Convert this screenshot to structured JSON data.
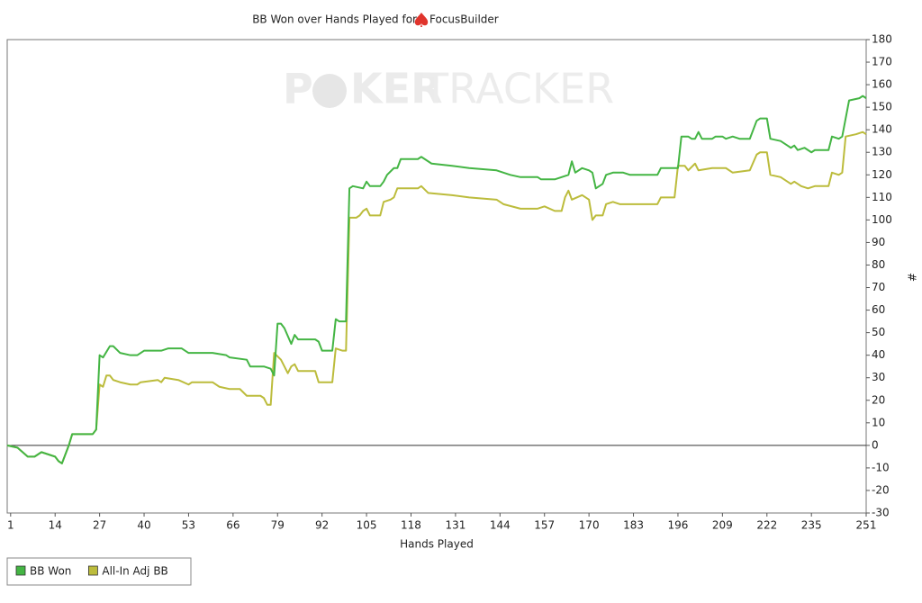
{
  "chart_data": {
    "type": "line",
    "title": "BB Won over Hands Played for",
    "player": "FocusBuilder",
    "watermark": [
      "P",
      "KER",
      "TRACKER"
    ],
    "xlabel": "Hands Played",
    "ylabel": "#",
    "xlim": [
      0,
      251
    ],
    "ylim": [
      -30,
      180
    ],
    "xticks": [
      1,
      14,
      27,
      40,
      53,
      66,
      79,
      92,
      105,
      118,
      131,
      144,
      157,
      170,
      183,
      196,
      209,
      222,
      235,
      251
    ],
    "yticks": [
      -30,
      -20,
      -10,
      0,
      10,
      20,
      30,
      40,
      50,
      60,
      70,
      80,
      90,
      100,
      110,
      120,
      130,
      140,
      150,
      160,
      170,
      180
    ],
    "zero_line": true,
    "legend": "bottom-left",
    "series": [
      {
        "name": "BB Won",
        "color": "#44b544",
        "x": [
          0,
          3,
          6,
          8,
          10,
          12,
          14,
          15,
          16,
          18,
          19,
          25,
          26,
          27,
          28,
          30,
          31,
          33,
          36,
          38,
          40,
          45,
          47,
          51,
          53,
          55,
          60,
          64,
          65,
          70,
          71,
          75,
          77,
          78,
          79,
          80,
          81,
          83,
          84,
          85,
          90,
          91,
          92,
          95,
          96,
          97,
          99,
          100,
          101,
          104,
          105,
          106,
          109,
          110,
          111,
          113,
          114,
          115,
          120,
          121,
          123,
          124,
          130,
          135,
          143,
          147,
          150,
          155,
          156,
          160,
          164,
          165,
          166,
          168,
          170,
          171,
          172,
          174,
          175,
          177,
          180,
          182,
          190,
          191,
          196,
          197,
          199,
          200,
          201,
          202,
          203,
          206,
          207,
          209,
          210,
          212,
          214,
          217,
          218,
          219,
          220,
          222,
          223,
          226,
          228,
          229,
          230,
          231,
          233,
          235,
          236,
          240,
          241,
          243,
          244,
          246,
          249,
          250,
          251
        ],
        "values": [
          0,
          -1,
          -5,
          -5,
          -3,
          -4,
          -5,
          -7,
          -8,
          0,
          5,
          5,
          7,
          40,
          39,
          44,
          44,
          41,
          40,
          40,
          42,
          42,
          43,
          43,
          41,
          41,
          41,
          40,
          39,
          38,
          35,
          35,
          34,
          31,
          54,
          54,
          52,
          45,
          49,
          47,
          47,
          46,
          42,
          42,
          56,
          55,
          55,
          114,
          115,
          114,
          117,
          115,
          115,
          117,
          120,
          123,
          123,
          127,
          127,
          128,
          126,
          125,
          124,
          123,
          122,
          120,
          119,
          119,
          118,
          118,
          120,
          126,
          121,
          123,
          122,
          121,
          114,
          116,
          120,
          121,
          121,
          120,
          120,
          123,
          123,
          137,
          137,
          136,
          136,
          139,
          136,
          136,
          137,
          137,
          136,
          137,
          136,
          136,
          140,
          144,
          145,
          145,
          136,
          135,
          133,
          132,
          133,
          131,
          132,
          130,
          131,
          131,
          137,
          136,
          137,
          153,
          154,
          155,
          154
        ]
      },
      {
        "name": "All-In Adj BB",
        "color": "#bcbc3c",
        "x": [
          0,
          3,
          6,
          8,
          10,
          12,
          14,
          15,
          16,
          18,
          19,
          25,
          26,
          27,
          28,
          29,
          30,
          31,
          33,
          36,
          38,
          39,
          44,
          45,
          46,
          50,
          53,
          54,
          60,
          62,
          65,
          68,
          70,
          74,
          75,
          76,
          77,
          78,
          80,
          82,
          83,
          84,
          85,
          90,
          91,
          95,
          96,
          98,
          99,
          100,
          102,
          103,
          104,
          105,
          106,
          109,
          110,
          112,
          113,
          114,
          120,
          121,
          123,
          130,
          135,
          143,
          145,
          150,
          155,
          157,
          160,
          162,
          163,
          164,
          165,
          168,
          170,
          171,
          172,
          174,
          175,
          177,
          179,
          190,
          191,
          195,
          196,
          198,
          199,
          201,
          202,
          206,
          210,
          212,
          217,
          219,
          220,
          222,
          223,
          226,
          228,
          229,
          230,
          232,
          234,
          236,
          240,
          241,
          243,
          244,
          245,
          248,
          250,
          251
        ],
        "values": [
          0,
          -1,
          -5,
          -5,
          -3,
          -4,
          -5,
          -7,
          -8,
          0,
          5,
          5,
          7,
          27,
          26,
          31,
          31,
          29,
          28,
          27,
          27,
          28,
          29,
          28,
          30,
          29,
          27,
          28,
          28,
          26,
          25,
          25,
          22,
          22,
          21,
          18,
          18,
          41,
          38,
          32,
          35,
          36,
          33,
          33,
          28,
          28,
          43,
          42,
          42,
          101,
          101,
          102,
          104,
          105,
          102,
          102,
          108,
          109,
          110,
          114,
          114,
          115,
          112,
          111,
          110,
          109,
          107,
          105,
          105,
          106,
          104,
          104,
          110,
          113,
          109,
          111,
          109,
          100,
          102,
          102,
          107,
          108,
          107,
          107,
          110,
          110,
          124,
          124,
          122,
          125,
          122,
          123,
          123,
          121,
          122,
          129,
          130,
          130,
          120,
          119,
          117,
          116,
          117,
          115,
          114,
          115,
          115,
          121,
          120,
          121,
          137,
          138,
          139,
          138
        ]
      }
    ]
  }
}
